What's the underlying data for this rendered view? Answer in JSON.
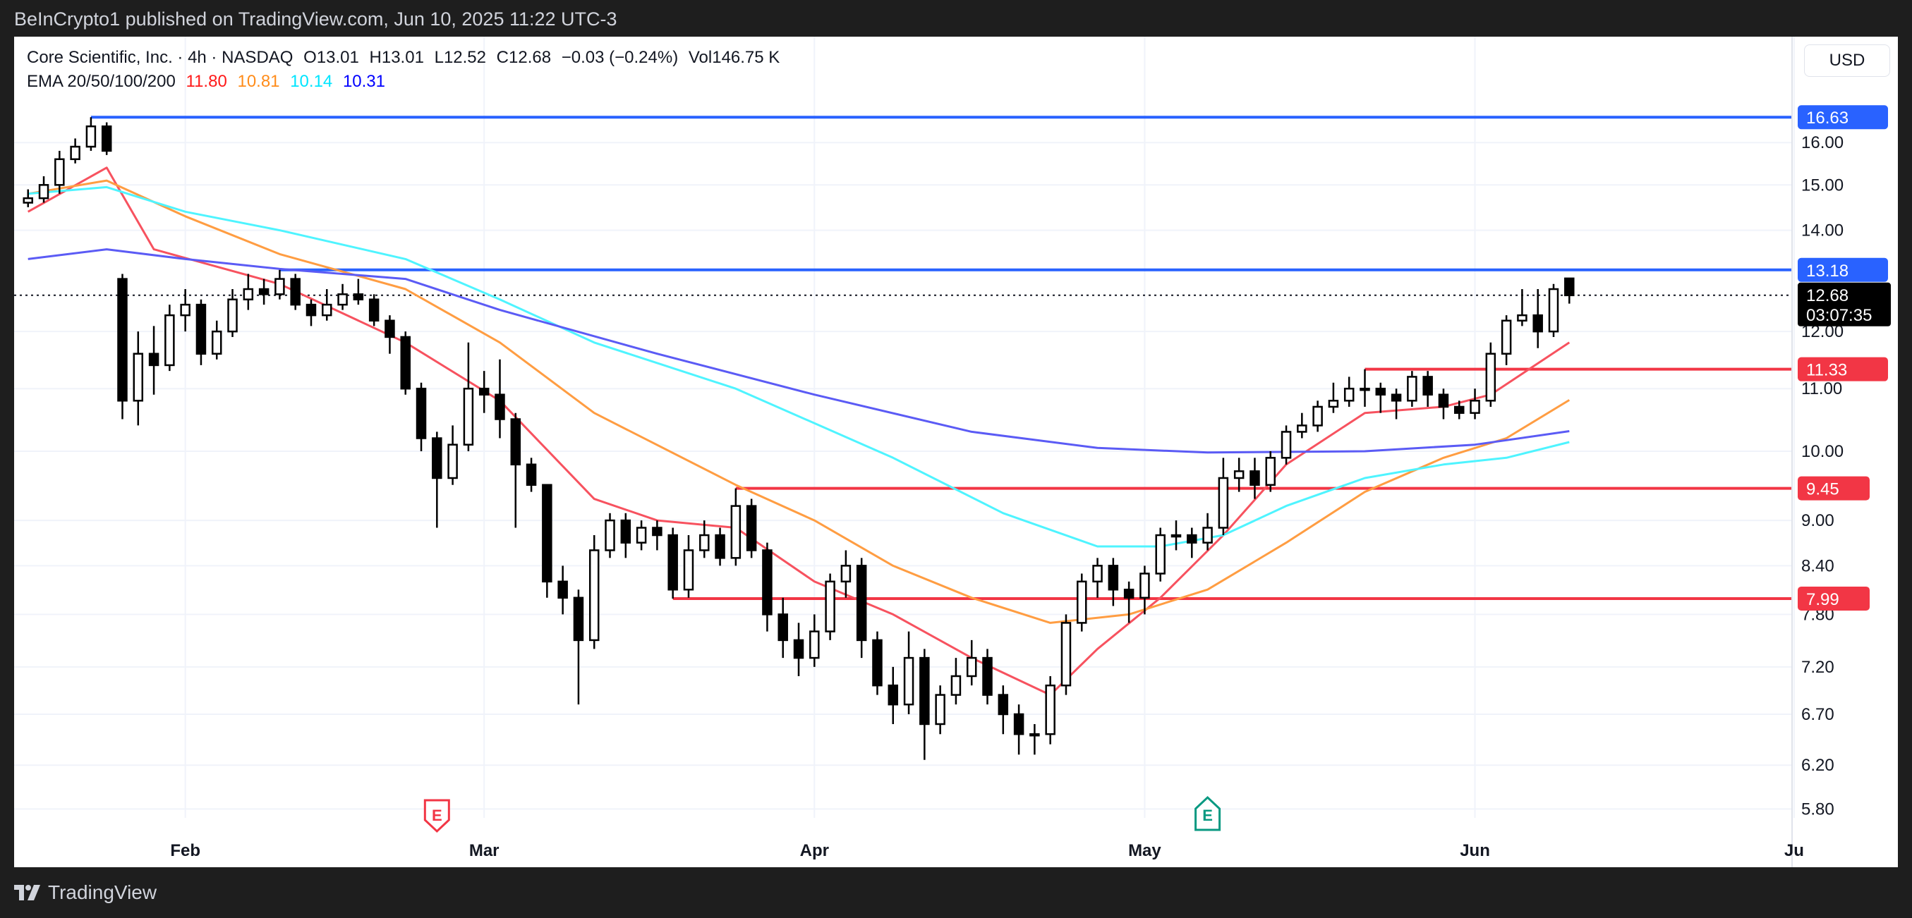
{
  "header": {
    "published": "BeInCrypto1 published on TradingView.com, Jun 10, 2025 11:22 UTC-3"
  },
  "legend": {
    "symbol": "Core Scientific, Inc. · 4h · NASDAQ",
    "open": "O13.01",
    "high": "H13.01",
    "low": "L12.52",
    "close": "C12.68",
    "change": "−0.03 (−0.24%)",
    "volume": "Vol146.75 K",
    "ema_label": "EMA 20/50/100/200",
    "ema_values": [
      {
        "value": "11.80",
        "color": "#ff1a1a"
      },
      {
        "value": "10.81",
        "color": "#ff8c1a"
      },
      {
        "value": "10.14",
        "color": "#00e5ff"
      },
      {
        "value": "10.31",
        "color": "#0000ff"
      }
    ]
  },
  "currency_button": "USD",
  "footer": {
    "brand": "TradingView"
  },
  "chart_data": {
    "type": "candlestick",
    "interval": "4h",
    "yscale": "log",
    "ylim": [
      5.6,
      17.2
    ],
    "grid": true,
    "y_ticks": [
      "16.00",
      "15.00",
      "14.00",
      "12.00",
      "11.00",
      "10.00",
      "9.00",
      "8.40",
      "7.80",
      "7.20",
      "6.70",
      "6.20",
      "5.80"
    ],
    "x_ticks": [
      {
        "label": "Feb",
        "date": "2025-02-03"
      },
      {
        "label": "Mar",
        "date": "2025-03-03"
      },
      {
        "label": "Apr",
        "date": "2025-04-01"
      },
      {
        "label": "May",
        "date": "2025-05-01"
      },
      {
        "label": "Jun",
        "date": "2025-06-02"
      },
      {
        "label": "Ju",
        "date": "2025-07-01"
      }
    ],
    "dates": [
      "2025-01-17",
      "2025-01-21",
      "2025-01-22",
      "2025-01-23",
      "2025-01-24",
      "2025-01-27",
      "2025-01-28",
      "2025-01-29",
      "2025-01-30",
      "2025-01-31",
      "2025-02-03",
      "2025-02-04",
      "2025-02-05",
      "2025-02-06",
      "2025-02-07",
      "2025-02-10",
      "2025-02-11",
      "2025-02-12",
      "2025-02-13",
      "2025-02-14",
      "2025-02-18",
      "2025-02-19",
      "2025-02-20",
      "2025-02-21",
      "2025-02-24",
      "2025-02-25",
      "2025-02-26",
      "2025-02-27",
      "2025-02-28",
      "2025-03-03",
      "2025-03-04",
      "2025-03-05",
      "2025-03-06",
      "2025-03-07",
      "2025-03-10",
      "2025-03-11",
      "2025-03-12",
      "2025-03-13",
      "2025-03-14",
      "2025-03-17",
      "2025-03-18",
      "2025-03-19",
      "2025-03-20",
      "2025-03-21",
      "2025-03-24",
      "2025-03-25",
      "2025-03-26",
      "2025-03-27",
      "2025-03-28",
      "2025-03-31",
      "2025-04-01",
      "2025-04-02",
      "2025-04-03",
      "2025-04-04",
      "2025-04-07",
      "2025-04-08",
      "2025-04-09",
      "2025-04-10",
      "2025-04-11",
      "2025-04-14",
      "2025-04-15",
      "2025-04-16",
      "2025-04-17",
      "2025-04-21",
      "2025-04-22",
      "2025-04-23",
      "2025-04-24",
      "2025-04-25",
      "2025-04-28",
      "2025-04-29",
      "2025-04-30",
      "2025-05-01",
      "2025-05-02",
      "2025-05-05",
      "2025-05-06",
      "2025-05-07",
      "2025-05-08",
      "2025-05-09",
      "2025-05-12",
      "2025-05-13",
      "2025-05-14",
      "2025-05-15",
      "2025-05-16",
      "2025-05-19",
      "2025-05-20",
      "2025-05-21",
      "2025-05-22",
      "2025-05-23",
      "2025-05-27",
      "2025-05-28",
      "2025-05-29",
      "2025-05-30",
      "2025-06-02",
      "2025-06-03",
      "2025-06-04",
      "2025-06-05",
      "2025-06-06",
      "2025-06-09",
      "2025-06-10"
    ],
    "ohlc": [
      [
        14.6,
        14.9,
        14.5,
        14.7
      ],
      [
        14.7,
        15.2,
        14.6,
        15.0
      ],
      [
        15.0,
        15.8,
        14.8,
        15.6
      ],
      [
        15.6,
        16.1,
        15.5,
        15.9
      ],
      [
        15.9,
        16.63,
        15.8,
        16.4
      ],
      [
        16.4,
        16.5,
        15.7,
        15.8
      ],
      [
        13.0,
        13.1,
        10.5,
        10.8
      ],
      [
        10.8,
        12.0,
        10.4,
        11.6
      ],
      [
        11.6,
        12.1,
        10.9,
        11.4
      ],
      [
        11.4,
        12.5,
        11.3,
        12.3
      ],
      [
        12.3,
        12.8,
        12.0,
        12.5
      ],
      [
        12.5,
        12.6,
        11.4,
        11.6
      ],
      [
        11.6,
        12.2,
        11.5,
        12.0
      ],
      [
        12.0,
        12.8,
        11.9,
        12.6
      ],
      [
        12.6,
        13.1,
        12.4,
        12.8
      ],
      [
        12.8,
        13.0,
        12.5,
        12.7
      ],
      [
        12.7,
        13.18,
        12.6,
        13.0
      ],
      [
        13.0,
        13.1,
        12.4,
        12.5
      ],
      [
        12.5,
        12.6,
        12.1,
        12.3
      ],
      [
        12.3,
        12.8,
        12.2,
        12.5
      ],
      [
        12.5,
        12.9,
        12.4,
        12.7
      ],
      [
        12.7,
        13.0,
        12.5,
        12.6
      ],
      [
        12.6,
        12.7,
        12.1,
        12.2
      ],
      [
        12.2,
        12.3,
        11.6,
        11.9
      ],
      [
        11.9,
        12.0,
        10.9,
        11.0
      ],
      [
        11.0,
        11.1,
        10.0,
        10.2
      ],
      [
        10.2,
        10.3,
        8.9,
        9.6
      ],
      [
        9.6,
        10.4,
        9.5,
        10.1
      ],
      [
        10.1,
        11.8,
        10.0,
        11.0
      ],
      [
        11.0,
        11.3,
        10.6,
        10.9
      ],
      [
        10.9,
        11.5,
        10.2,
        10.5
      ],
      [
        10.5,
        10.6,
        8.9,
        9.8
      ],
      [
        9.8,
        9.9,
        9.4,
        9.5
      ],
      [
        9.5,
        9.5,
        8.0,
        8.2
      ],
      [
        8.2,
        8.4,
        7.8,
        8.0
      ],
      [
        8.0,
        8.1,
        6.8,
        7.5
      ],
      [
        7.5,
        8.8,
        7.4,
        8.6
      ],
      [
        8.6,
        9.1,
        8.5,
        9.0
      ],
      [
        9.0,
        9.1,
        8.5,
        8.7
      ],
      [
        8.7,
        9.0,
        8.6,
        8.9
      ],
      [
        8.9,
        9.0,
        8.6,
        8.8
      ],
      [
        8.8,
        8.9,
        7.99,
        8.1
      ],
      [
        8.1,
        8.8,
        8.0,
        8.6
      ],
      [
        8.6,
        9.0,
        8.5,
        8.8
      ],
      [
        8.8,
        8.9,
        8.4,
        8.5
      ],
      [
        8.5,
        9.45,
        8.4,
        9.2
      ],
      [
        9.2,
        9.3,
        8.5,
        8.6
      ],
      [
        8.6,
        8.7,
        7.6,
        7.8
      ],
      [
        7.8,
        8.0,
        7.3,
        7.5
      ],
      [
        7.5,
        7.7,
        7.1,
        7.3
      ],
      [
        7.3,
        7.8,
        7.2,
        7.6
      ],
      [
        7.6,
        8.3,
        7.5,
        8.2
      ],
      [
        8.2,
        8.6,
        8.0,
        8.4
      ],
      [
        8.4,
        8.5,
        7.3,
        7.5
      ],
      [
        7.5,
        7.6,
        6.9,
        7.0
      ],
      [
        7.0,
        7.2,
        6.6,
        6.8
      ],
      [
        6.8,
        7.6,
        6.7,
        7.3
      ],
      [
        7.3,
        7.4,
        6.25,
        6.6
      ],
      [
        6.6,
        7.0,
        6.5,
        6.9
      ],
      [
        6.9,
        7.3,
        6.8,
        7.1
      ],
      [
        7.1,
        7.5,
        7.0,
        7.3
      ],
      [
        7.3,
        7.4,
        6.8,
        6.9
      ],
      [
        6.9,
        7.0,
        6.5,
        6.7
      ],
      [
        6.7,
        6.8,
        6.3,
        6.5
      ],
      [
        6.5,
        6.6,
        6.3,
        6.5
      ],
      [
        6.5,
        7.1,
        6.4,
        7.0
      ],
      [
        7.0,
        7.8,
        6.9,
        7.7
      ],
      [
        7.7,
        8.3,
        7.6,
        8.2
      ],
      [
        8.2,
        8.5,
        8.0,
        8.4
      ],
      [
        8.4,
        8.5,
        7.9,
        8.1
      ],
      [
        8.1,
        8.2,
        7.7,
        8.0
      ],
      [
        8.0,
        8.4,
        7.8,
        8.3
      ],
      [
        8.3,
        8.9,
        8.2,
        8.8
      ],
      [
        8.8,
        9.0,
        8.6,
        8.8
      ],
      [
        8.8,
        8.9,
        8.5,
        8.7
      ],
      [
        8.7,
        9.1,
        8.6,
        8.9
      ],
      [
        8.9,
        9.9,
        8.8,
        9.6
      ],
      [
        9.6,
        9.9,
        9.4,
        9.7
      ],
      [
        9.7,
        9.9,
        9.3,
        9.5
      ],
      [
        9.5,
        10.0,
        9.4,
        9.9
      ],
      [
        9.9,
        10.4,
        9.8,
        10.3
      ],
      [
        10.3,
        10.6,
        10.2,
        10.4
      ],
      [
        10.4,
        10.8,
        10.3,
        10.7
      ],
      [
        10.7,
        11.1,
        10.6,
        10.8
      ],
      [
        10.8,
        11.2,
        10.7,
        11.0
      ],
      [
        11.0,
        11.33,
        10.7,
        11.0
      ],
      [
        11.0,
        11.1,
        10.6,
        10.9
      ],
      [
        10.9,
        11.0,
        10.5,
        10.8
      ],
      [
        10.8,
        11.3,
        10.7,
        11.2
      ],
      [
        11.2,
        11.3,
        10.7,
        10.9
      ],
      [
        10.9,
        11.0,
        10.5,
        10.7
      ],
      [
        10.7,
        10.8,
        10.5,
        10.6
      ],
      [
        10.6,
        11.0,
        10.5,
        10.8
      ],
      [
        10.8,
        11.8,
        10.7,
        11.6
      ],
      [
        11.6,
        12.3,
        11.4,
        12.2
      ],
      [
        12.2,
        12.8,
        12.1,
        12.3
      ],
      [
        12.3,
        12.8,
        11.7,
        12.0
      ],
      [
        12.0,
        12.9,
        11.9,
        12.8
      ],
      [
        13.01,
        13.01,
        12.52,
        12.68
      ]
    ],
    "ema_series": [
      {
        "name": "EMA 20",
        "color": "#f7525f",
        "points": [
          [
            "2025-01-17",
            14.4
          ],
          [
            "2025-01-27",
            15.4
          ],
          [
            "2025-01-30",
            13.6
          ],
          [
            "2025-02-11",
            12.9
          ],
          [
            "2025-02-24",
            11.8
          ],
          [
            "2025-03-04",
            10.8
          ],
          [
            "2025-03-12",
            9.3
          ],
          [
            "2025-03-18",
            9.0
          ],
          [
            "2025-03-25",
            8.9
          ],
          [
            "2025-04-01",
            8.2
          ],
          [
            "2025-04-08",
            7.8
          ],
          [
            "2025-04-15",
            7.3
          ],
          [
            "2025-04-23",
            6.9
          ],
          [
            "2025-04-28",
            7.4
          ],
          [
            "2025-05-02",
            8.0
          ],
          [
            "2025-05-08",
            8.8
          ],
          [
            "2025-05-14",
            9.8
          ],
          [
            "2025-05-21",
            10.6
          ],
          [
            "2025-05-29",
            10.7
          ],
          [
            "2025-06-03",
            10.9
          ],
          [
            "2025-06-10",
            11.8
          ]
        ]
      },
      {
        "name": "EMA 50",
        "color": "#ff9d42",
        "points": [
          [
            "2025-01-17",
            14.8
          ],
          [
            "2025-01-27",
            15.1
          ],
          [
            "2025-02-03",
            14.3
          ],
          [
            "2025-02-11",
            13.5
          ],
          [
            "2025-02-24",
            12.8
          ],
          [
            "2025-03-04",
            11.8
          ],
          [
            "2025-03-12",
            10.6
          ],
          [
            "2025-03-25",
            9.5
          ],
          [
            "2025-04-01",
            9.0
          ],
          [
            "2025-04-08",
            8.4
          ],
          [
            "2025-04-15",
            8.0
          ],
          [
            "2025-04-23",
            7.7
          ],
          [
            "2025-04-30",
            7.8
          ],
          [
            "2025-05-07",
            8.1
          ],
          [
            "2025-05-14",
            8.7
          ],
          [
            "2025-05-21",
            9.4
          ],
          [
            "2025-05-29",
            9.9
          ],
          [
            "2025-06-04",
            10.2
          ],
          [
            "2025-06-10",
            10.81
          ]
        ]
      },
      {
        "name": "EMA 100",
        "color": "#4ff4ff",
        "points": [
          [
            "2025-01-17",
            14.8
          ],
          [
            "2025-01-27",
            14.95
          ],
          [
            "2025-02-03",
            14.4
          ],
          [
            "2025-02-11",
            14.0
          ],
          [
            "2025-02-24",
            13.4
          ],
          [
            "2025-03-04",
            12.6
          ],
          [
            "2025-03-12",
            11.8
          ],
          [
            "2025-03-25",
            11.0
          ],
          [
            "2025-04-08",
            9.9
          ],
          [
            "2025-04-17",
            9.1
          ],
          [
            "2025-04-28",
            8.65
          ],
          [
            "2025-05-02",
            8.65
          ],
          [
            "2025-05-08",
            8.8
          ],
          [
            "2025-05-14",
            9.2
          ],
          [
            "2025-05-21",
            9.6
          ],
          [
            "2025-05-29",
            9.8
          ],
          [
            "2025-06-04",
            9.9
          ],
          [
            "2025-06-10",
            10.14
          ]
        ]
      },
      {
        "name": "EMA 200",
        "color": "#5b5bf5",
        "points": [
          [
            "2025-01-17",
            13.4
          ],
          [
            "2025-01-27",
            13.6
          ],
          [
            "2025-02-03",
            13.4
          ],
          [
            "2025-02-11",
            13.2
          ],
          [
            "2025-02-24",
            13.0
          ],
          [
            "2025-03-04",
            12.4
          ],
          [
            "2025-03-18",
            11.6
          ],
          [
            "2025-04-01",
            10.9
          ],
          [
            "2025-04-15",
            10.3
          ],
          [
            "2025-04-28",
            10.05
          ],
          [
            "2025-05-07",
            9.98
          ],
          [
            "2025-05-21",
            10.0
          ],
          [
            "2025-06-02",
            10.1
          ],
          [
            "2025-06-10",
            10.31
          ]
        ]
      }
    ],
    "levels": [
      {
        "value": 16.63,
        "label": "16.63",
        "color": "#2962ff",
        "from": "2025-01-24"
      },
      {
        "value": 13.18,
        "label": "13.18",
        "color": "#2962ff",
        "from": "2025-02-11"
      },
      {
        "value": 11.33,
        "label": "11.33",
        "color": "#f23645",
        "from": "2025-05-21"
      },
      {
        "value": 9.45,
        "label": "9.45",
        "color": "#f23645",
        "from": "2025-03-25"
      },
      {
        "value": 7.99,
        "label": "7.99",
        "color": "#f23645",
        "from": "2025-03-19"
      }
    ],
    "last_price": {
      "value": 12.68,
      "label": "12.68",
      "countdown": "03:07:35"
    },
    "earnings": [
      {
        "date": "2025-02-26",
        "label": "E",
        "color": "#f23645",
        "direction": "down"
      },
      {
        "date": "2025-05-07",
        "label": "E",
        "color": "#089981",
        "direction": "up"
      }
    ]
  }
}
